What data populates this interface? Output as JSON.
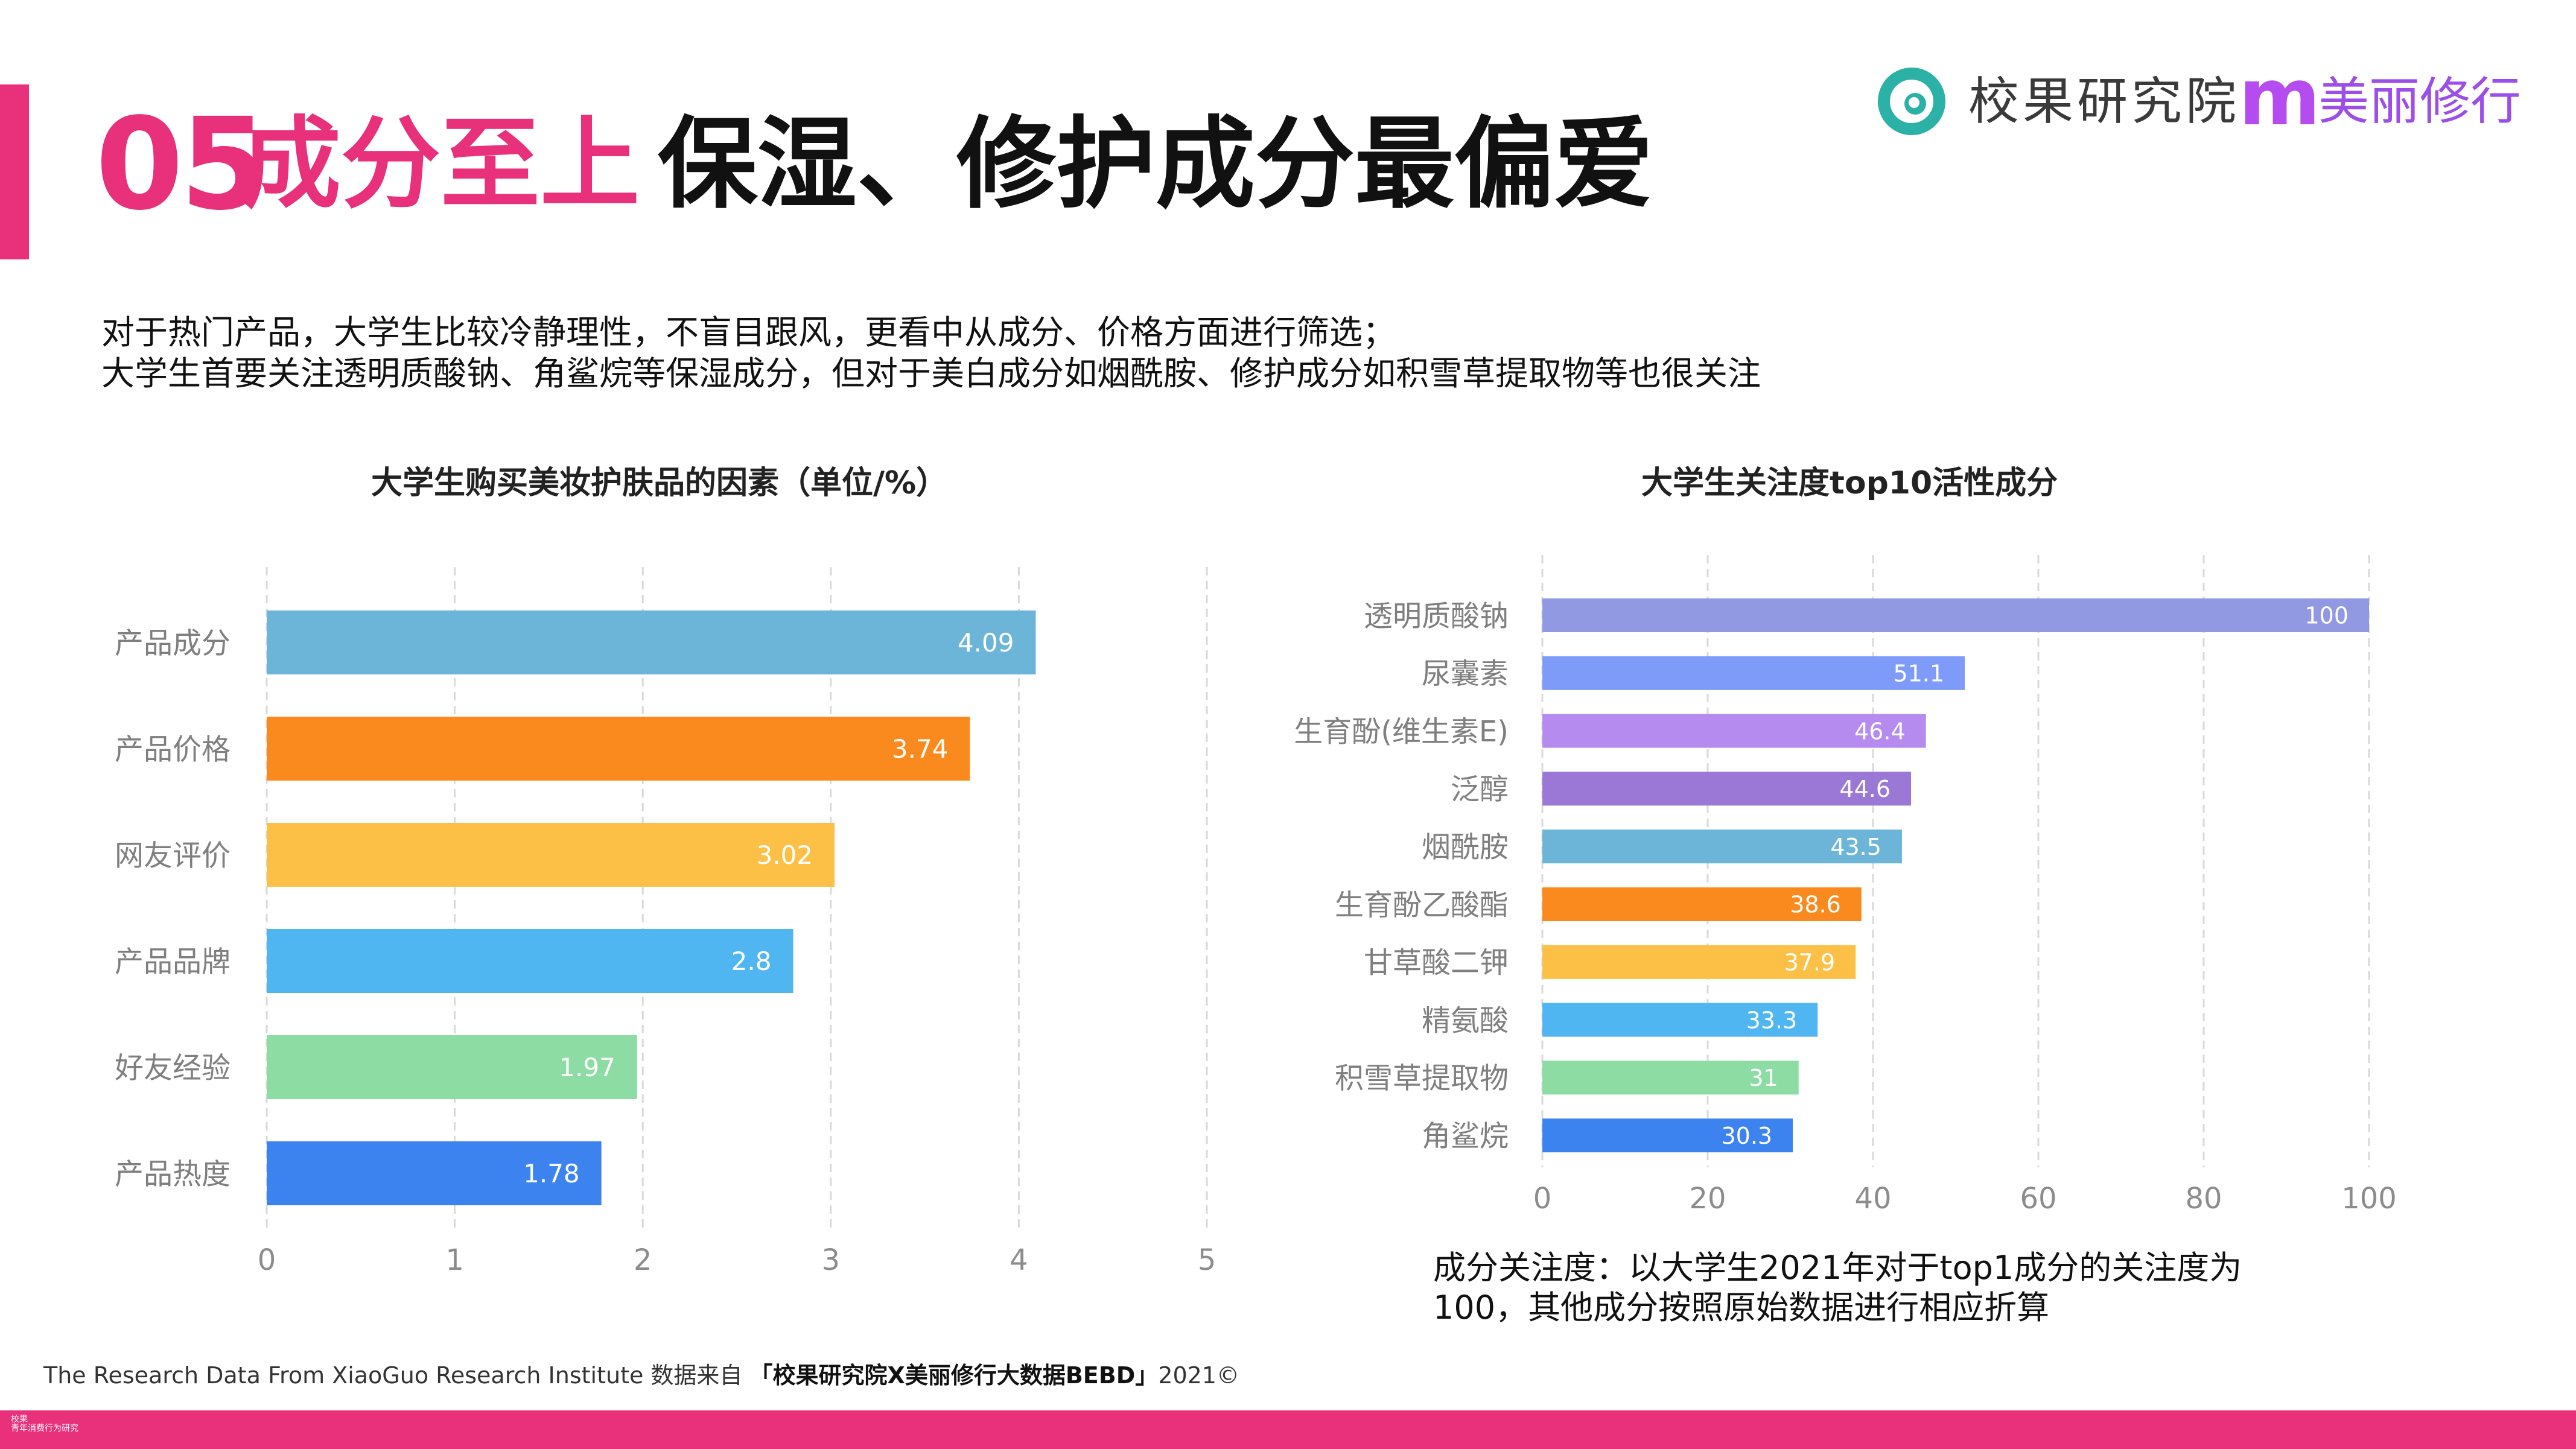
{
  "header": {
    "number": "05",
    "keyword": "成分至上",
    "title": "保湿、修护成分最偏爱"
  },
  "logos": {
    "xiaoguo": "校果研究院",
    "meili_mark": "m",
    "meili": "美丽修行"
  },
  "description": [
    "对于热门产品，大学生比较冷静理性，不盲目跟风，更看中从成分、价格方面进行筛选；",
    "大学生首要关注透明质酸钠、角鲨烷等保湿成分，但对于美白成分如烟酰胺、修护成分如积雪草提取物等也很关注"
  ],
  "chart_data": [
    {
      "type": "bar",
      "orientation": "horizontal",
      "title": "大学生购买美妆护肤品的因素（单位/%）",
      "categories": [
        "产品成分",
        "产品价格",
        "网友评价",
        "产品品牌",
        "好友经验",
        "产品热度"
      ],
      "values": [
        4.09,
        3.74,
        3.02,
        2.8,
        1.97,
        1.78
      ],
      "value_labels": [
        "4.09",
        "3.74",
        "3.02",
        "2.8",
        "1.97",
        "1.78"
      ],
      "colors": [
        "#6db5d8",
        "#fb8a1e",
        "#fdc046",
        "#4fb6f1",
        "#8ddca4",
        "#3d83f0"
      ],
      "xlim": [
        0,
        5
      ],
      "xticks": [
        "0",
        "1",
        "2",
        "3",
        "4",
        "5"
      ],
      "grid": true
    },
    {
      "type": "bar",
      "orientation": "horizontal",
      "title": "大学生关注度top10活性成分",
      "categories": [
        "透明质酸钠",
        "尿囊素",
        "生育酚(维生素E)",
        "泛醇",
        "烟酰胺",
        "生育酚乙酸酯",
        "甘草酸二钾",
        "精氨酸",
        "积雪草提取物",
        "角鲨烷"
      ],
      "values": [
        100,
        51.1,
        46.4,
        44.6,
        43.5,
        38.6,
        37.9,
        33.3,
        31,
        30.3
      ],
      "value_labels": [
        "100",
        "51.1",
        "46.4",
        "44.6",
        "43.5",
        "38.6",
        "37.9",
        "33.3",
        "31",
        "30.3"
      ],
      "colors": [
        "#9199e2",
        "#7f9bf9",
        "#b58bef",
        "#9b78d6",
        "#6db5d8",
        "#fb8a1e",
        "#fdc046",
        "#4fb6f1",
        "#8ddca4",
        "#3d83f0"
      ],
      "xlim": [
        0,
        100
      ],
      "xticks": [
        "0",
        "20",
        "40",
        "60",
        "80",
        "100"
      ],
      "grid": true
    }
  ],
  "note": [
    "成分关注度：以大学生2021年对于top1成分的关注度为",
    "100，其他成分按照原始数据进行相应折算"
  ],
  "footer": {
    "text": "The Research Data From XiaoGuo Research Institute 数据来自",
    "source": "「校果研究院X美丽修行大数据BEBD」",
    "year": "2021©"
  },
  "bottom_logo": {
    "line1": "校果",
    "line2": "青年消费行为研究"
  },
  "theme": {
    "accent": "#e8307b",
    "grid": "#d9d9d9",
    "axis_text": "#8c8c8c",
    "category_text": "#7f7f7f",
    "logo_teal": "#2bb1a6"
  }
}
